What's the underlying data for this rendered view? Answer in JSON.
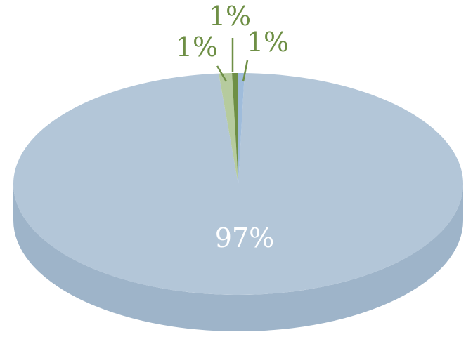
{
  "chart_data": {
    "type": "pie",
    "style": "3d",
    "values": [
      97,
      1,
      1,
      1
    ],
    "data_labels": [
      "97%",
      "1%",
      "1%",
      "1%"
    ],
    "colors": [
      "#b3c6d8",
      "#b6cb9e",
      "#6e8f45",
      "#9fbcdb"
    ],
    "side_colors": [
      "#9eb4c9",
      "#a3b88a",
      "#5c7a38",
      "#8aaac9"
    ],
    "label_colors": [
      "#ffffff",
      "#6e8f45",
      "#6e8f45",
      "#6e8f45"
    ],
    "leader_color": "#6e8f45",
    "legend": "none",
    "grid": false
  }
}
